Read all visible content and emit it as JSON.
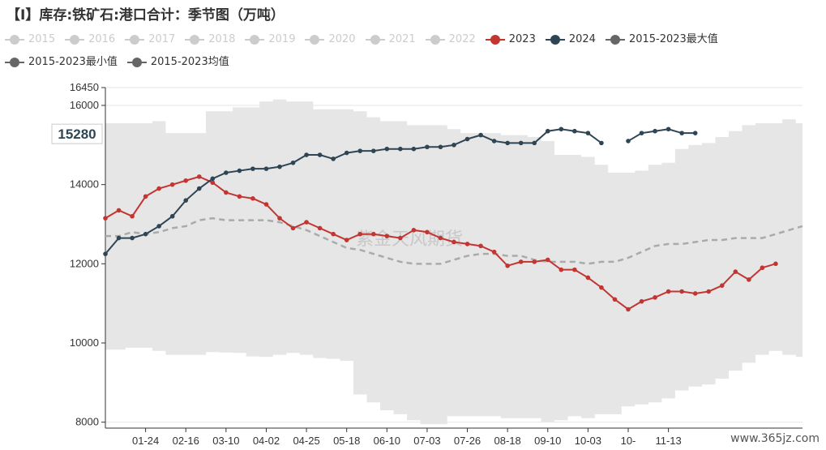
{
  "title": "【I】库存:铁矿石:港口合计：季节图（万吨）",
  "legend": [
    {
      "name": "2015",
      "color": "#cccccc",
      "active": false
    },
    {
      "name": "2016",
      "color": "#cccccc",
      "active": false
    },
    {
      "name": "2017",
      "color": "#cccccc",
      "active": false
    },
    {
      "name": "2018",
      "color": "#cccccc",
      "active": false
    },
    {
      "name": "2019",
      "color": "#cccccc",
      "active": false
    },
    {
      "name": "2020",
      "color": "#cccccc",
      "active": false
    },
    {
      "name": "2021",
      "color": "#cccccc",
      "active": false
    },
    {
      "name": "2022",
      "color": "#cccccc",
      "active": false
    },
    {
      "name": "2023",
      "color": "#c23531",
      "active": true
    },
    {
      "name": "2024",
      "color": "#2f4554",
      "active": true
    },
    {
      "name": "2015-2023最大值",
      "color": "#666666",
      "active": true
    },
    {
      "name": "2015-2023最小值",
      "color": "#666666",
      "active": true
    },
    {
      "name": "2015-2023均值",
      "color": "#666666",
      "active": true
    }
  ],
  "watermark": "紫金天风期货",
  "site_watermark": "www.365jz.com",
  "chart_data": {
    "type": "line",
    "ylim": [
      7850,
      16450
    ],
    "xlim": [
      1,
      53
    ],
    "y_ticks": [
      8000,
      10000,
      12000,
      14000,
      16000,
      16450
    ],
    "x_ticks": [
      {
        "x": 4,
        "label": "01-24"
      },
      {
        "x": 7,
        "label": "02-16"
      },
      {
        "x": 10,
        "label": "03-10"
      },
      {
        "x": 13,
        "label": "04-02"
      },
      {
        "x": 16,
        "label": "04-25"
      },
      {
        "x": 19,
        "label": "05-18"
      },
      {
        "x": 22,
        "label": "06-10"
      },
      {
        "x": 25,
        "label": "07-03"
      },
      {
        "x": 28,
        "label": "07-26"
      },
      {
        "x": 31,
        "label": "08-18"
      },
      {
        "x": 34,
        "label": "09-10"
      },
      {
        "x": 37,
        "label": "10-03"
      },
      {
        "x": 40,
        "label": "10-"
      },
      {
        "x": 43,
        "label": "11-13"
      }
    ],
    "current_value_label": "15280",
    "series": [
      {
        "name": "2015-2023最大值",
        "type": "band-max",
        "values": [
          15550,
          15550,
          15550,
          15550,
          15600,
          15300,
          15300,
          15300,
          15850,
          15850,
          15950,
          15950,
          16100,
          16150,
          16100,
          16100,
          15900,
          15900,
          15900,
          15850,
          15700,
          15600,
          15600,
          15500,
          15500,
          15500,
          15400,
          15300,
          15300,
          15300,
          15250,
          15250,
          15200,
          15100,
          14750,
          14750,
          14700,
          14500,
          14300,
          14300,
          14350,
          14500,
          14550,
          14900,
          15000,
          15050,
          15200,
          15350,
          15500,
          15550,
          15550,
          15650,
          15550
        ]
      },
      {
        "name": "2015-2023最小值",
        "type": "band-min",
        "values": [
          9830,
          9830,
          9880,
          9880,
          9800,
          9700,
          9700,
          9700,
          9770,
          9760,
          9750,
          9660,
          9650,
          9700,
          9750,
          9700,
          9620,
          9600,
          9550,
          8700,
          8500,
          8300,
          8200,
          8050,
          7950,
          7950,
          8150,
          8150,
          8150,
          8150,
          8100,
          8100,
          8100,
          8000,
          8050,
          8150,
          8100,
          8200,
          8200,
          8400,
          8450,
          8500,
          8600,
          8800,
          8900,
          8950,
          9100,
          9300,
          9500,
          9700,
          9800,
          9700,
          9650
        ]
      },
      {
        "name": "2015-2023均值",
        "type": "dashed",
        "values": [
          12700,
          12700,
          12800,
          12750,
          12800,
          12900,
          12950,
          13100,
          13150,
          13100,
          13100,
          13100,
          13100,
          13050,
          12950,
          12850,
          12700,
          12550,
          12400,
          12350,
          12250,
          12150,
          12050,
          12000,
          12000,
          12000,
          12100,
          12200,
          12250,
          12250,
          12200,
          12200,
          12100,
          12050,
          12050,
          12050,
          12000,
          12050,
          12050,
          12150,
          12300,
          12450,
          12500,
          12500,
          12550,
          12600,
          12600,
          12650,
          12650,
          12650,
          12750,
          12850,
          12950
        ]
      },
      {
        "name": "2023",
        "color": "#c23531",
        "values": [
          13150,
          13350,
          13200,
          13700,
          13900,
          14000,
          14100,
          14200,
          14050,
          13800,
          13700,
          13650,
          13500,
          13150,
          12900,
          13050,
          12900,
          12750,
          12600,
          12750,
          12750,
          12700,
          12650,
          12850,
          12800,
          12650,
          12550,
          12500,
          12450,
          12300,
          11950,
          12050,
          12050,
          12100,
          11850,
          11850,
          11650,
          11400,
          11100,
          10850,
          11050,
          11150,
          11300,
          11300,
          11250,
          11300,
          11450,
          11800,
          11600,
          11900,
          12000
        ]
      },
      {
        "name": "2024",
        "color": "#2f4554",
        "values": [
          12250,
          12650,
          12650,
          12750,
          12950,
          13200,
          13600,
          13900,
          14150,
          14300,
          14350,
          14400,
          14400,
          14450,
          14550,
          14750,
          14750,
          14650,
          14800,
          14850,
          14850,
          14900,
          14900,
          14900,
          14950,
          14950,
          15000,
          15150,
          15250,
          15100,
          15050,
          15050,
          15050,
          15350,
          15400,
          15350,
          15300,
          15050,
          null,
          15100,
          15300,
          15350,
          15400,
          15300,
          15300
        ]
      }
    ]
  }
}
